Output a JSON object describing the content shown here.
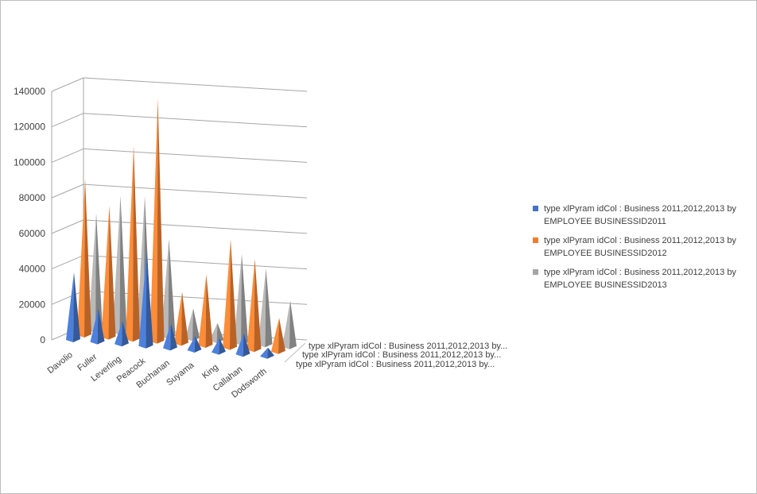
{
  "chart_data": {
    "type": "bar",
    "subtype": "3d-pyramid-column",
    "categories": [
      "Davolio",
      "Fuller",
      "Leverling",
      "Peacock",
      "Buchanan",
      "Suyama",
      "King",
      "Callahan",
      "Dodsworth"
    ],
    "series": [
      {
        "name": "type xlPyram idCol : Business 2011,2012,2013 by EMPLOYEE  BUSINESSID2011",
        "short_name": "type xlPyram idCol : Business 2011,2012,2013 by...",
        "color": "#4472c4",
        "values": [
          38000,
          19000,
          13000,
          54000,
          14000,
          8000,
          8000,
          12000,
          5000
        ]
      },
      {
        "name": "type xlPyram idCol : Business 2011,2012,2013 by EMPLOYEE  BUSINESSID2012",
        "short_name": "type xlPyram idCol : Business 2011,2012,2013 by...",
        "color": "#ed7d31",
        "values": [
          88000,
          74000,
          109000,
          137000,
          29000,
          40000,
          61000,
          51000,
          19000
        ]
      },
      {
        "name": "type xlPyram idCol : Business 2011,2012,2013 by EMPLOYEE  BUSINESSID2013",
        "short_name": "type xlPyram idCol : Business 2011,2012,2013 by...",
        "color": "#a5a5a5",
        "values": [
          66000,
          77000,
          78000,
          55000,
          17000,
          10000,
          50000,
          43000,
          26000
        ]
      }
    ],
    "y_ticks": [
      "0",
      "20000",
      "40000",
      "60000",
      "80000",
      "100000",
      "120000",
      "140000"
    ],
    "ylim": [
      0,
      140000
    ],
    "grid": true,
    "legend_position": "right"
  }
}
